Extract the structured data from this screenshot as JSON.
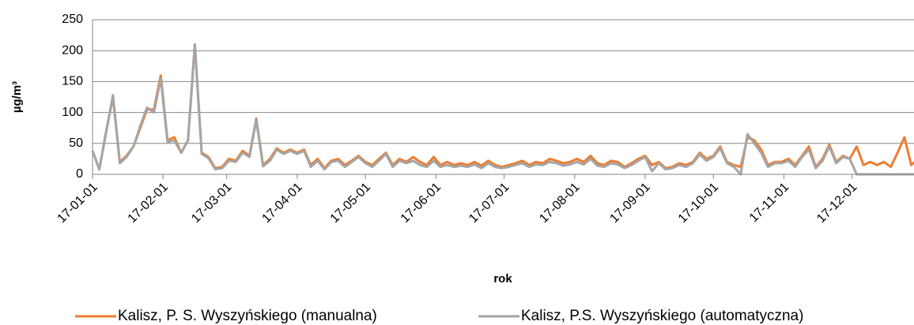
{
  "chart_data": {
    "type": "line",
    "y_label": "µg/m³",
    "x_label": "rok",
    "x": [
      "17-01-01",
      "17-01-04",
      "17-01-07",
      "17-01-10",
      "17-01-13",
      "17-01-16",
      "17-01-19",
      "17-01-22",
      "17-01-25",
      "17-01-28",
      "17-01-31",
      "17-02-03",
      "17-02-06",
      "17-02-09",
      "17-02-12",
      "17-02-15",
      "17-02-18",
      "17-02-21",
      "17-02-24",
      "17-02-27",
      "17-03-02",
      "17-03-05",
      "17-03-08",
      "17-03-11",
      "17-03-14",
      "17-03-17",
      "17-03-20",
      "17-03-23",
      "17-03-26",
      "17-03-29",
      "17-04-01",
      "17-04-04",
      "17-04-07",
      "17-04-10",
      "17-04-13",
      "17-04-16",
      "17-04-19",
      "17-04-22",
      "17-04-25",
      "17-04-28",
      "17-05-01",
      "17-05-04",
      "17-05-07",
      "17-05-10",
      "17-05-13",
      "17-05-16",
      "17-05-19",
      "17-05-22",
      "17-05-25",
      "17-05-28",
      "17-05-31",
      "17-06-03",
      "17-06-06",
      "17-06-09",
      "17-06-12",
      "17-06-15",
      "17-06-18",
      "17-06-21",
      "17-06-24",
      "17-06-27",
      "17-06-30",
      "17-07-03",
      "17-07-06",
      "17-07-09",
      "17-07-12",
      "17-07-15",
      "17-07-18",
      "17-07-21",
      "17-07-24",
      "17-07-27",
      "17-07-30",
      "17-08-02",
      "17-08-05",
      "17-08-08",
      "17-08-11",
      "17-08-14",
      "17-08-17",
      "17-08-20",
      "17-08-23",
      "17-08-26",
      "17-08-29",
      "17-09-01",
      "17-09-04",
      "17-09-07",
      "17-09-10",
      "17-09-13",
      "17-09-16",
      "17-09-19",
      "17-09-22",
      "17-09-25",
      "17-09-28",
      "17-10-01",
      "17-10-04",
      "17-10-07",
      "17-10-10",
      "17-10-13",
      "17-10-16",
      "17-10-19",
      "17-10-22",
      "17-10-25",
      "17-10-28",
      "17-10-31",
      "17-11-03",
      "17-11-06",
      "17-11-09",
      "17-11-12",
      "17-11-15",
      "17-11-18",
      "17-11-21",
      "17-11-24",
      "17-11-27",
      "17-11-30",
      "17-12-03",
      "17-12-06",
      "17-12-09",
      "17-12-12",
      "17-12-15",
      "17-12-18",
      "17-12-21",
      "17-12-24",
      "17-12-27",
      "17-12-30"
    ],
    "series": [
      {
        "name": "Kalisz, P. S. Wyszyńskiego (manualna)",
        "color": "#ed7d31",
        "values": [
          38,
          8,
          70,
          125,
          20,
          30,
          45,
          75,
          105,
          105,
          160,
          55,
          60,
          35,
          55,
          210,
          35,
          28,
          10,
          12,
          25,
          22,
          38,
          30,
          90,
          15,
          25,
          42,
          35,
          40,
          35,
          40,
          15,
          25,
          10,
          22,
          25,
          15,
          22,
          30,
          20,
          15,
          25,
          35,
          15,
          25,
          20,
          28,
          20,
          15,
          28,
          15,
          20,
          15,
          18,
          15,
          20,
          14,
          22,
          15,
          12,
          15,
          18,
          22,
          15,
          20,
          18,
          25,
          22,
          18,
          20,
          25,
          20,
          30,
          18,
          15,
          22,
          20,
          12,
          18,
          25,
          30,
          15,
          20,
          10,
          12,
          18,
          15,
          20,
          35,
          25,
          30,
          45,
          20,
          15,
          12,
          60,
          55,
          40,
          15,
          20,
          20,
          25,
          15,
          30,
          45,
          12,
          25,
          48,
          20,
          30,
          25,
          45,
          15,
          20,
          15,
          20,
          12,
          35,
          60,
          15,
          25
        ]
      },
      {
        "name": "Kalisz, P.S. Wyszyńskiego (automatyczna)",
        "color": "#a5a5a5",
        "values": [
          38,
          8,
          68,
          128,
          18,
          28,
          45,
          78,
          108,
          100,
          155,
          52,
          55,
          35,
          55,
          210,
          33,
          26,
          8,
          10,
          22,
          20,
          35,
          28,
          88,
          13,
          22,
          40,
          33,
          38,
          33,
          38,
          12,
          22,
          8,
          20,
          22,
          12,
          20,
          28,
          18,
          12,
          22,
          33,
          12,
          22,
          18,
          22,
          15,
          12,
          22,
          12,
          15,
          12,
          14,
          12,
          16,
          10,
          18,
          12,
          10,
          12,
          15,
          18,
          12,
          16,
          15,
          20,
          18,
          14,
          16,
          20,
          16,
          25,
          14,
          12,
          18,
          16,
          10,
          15,
          22,
          28,
          5,
          18,
          8,
          10,
          15,
          12,
          18,
          32,
          22,
          28,
          42,
          18,
          12,
          0,
          65,
          50,
          35,
          12,
          18,
          18,
          22,
          12,
          28,
          40,
          10,
          22,
          45,
          18,
          28,
          25,
          0,
          0,
          0,
          0,
          0,
          0,
          0,
          0,
          0,
          0
        ]
      }
    ],
    "xlim": [
      "17-01-01",
      "17-12-31"
    ],
    "xticks": [
      "17-01-01",
      "17-02-01",
      "17-03-01",
      "17-04-01",
      "17-05-01",
      "17-06-01",
      "17-07-01",
      "17-08-01",
      "17-09-01",
      "17-10-01",
      "17-11-01",
      "17-12-01"
    ],
    "ylim": [
      0,
      250
    ],
    "yticks": [
      0,
      50,
      100,
      150,
      200,
      250
    ],
    "grid": true,
    "legend": "bottom"
  }
}
